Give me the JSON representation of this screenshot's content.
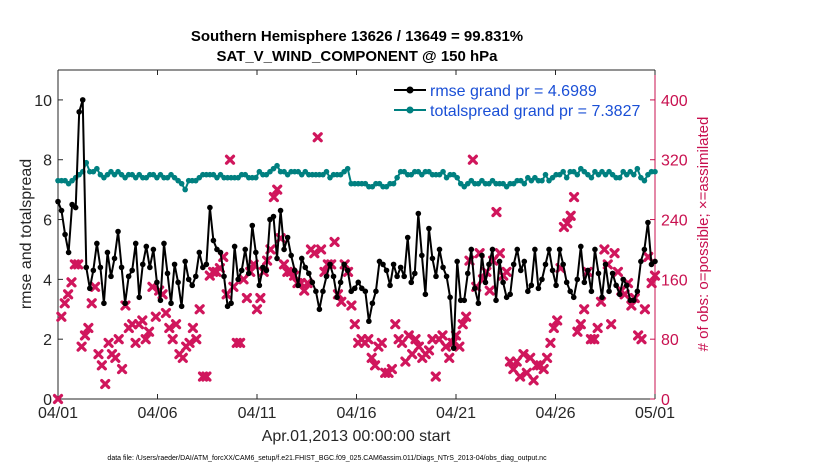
{
  "chart_data": {
    "type": "line",
    "title": "Southern Hemisphere 13626 / 13649 = 99.831%",
    "subtitle": "SAT_V_WIND_COMPONENT @ 150 hPa",
    "xlabel": "Apr.01,2013 00:00:00 start",
    "ylabel": "rmse and totalspread",
    "ylabel_right": "# of obs: o=possible; ×=assimilated",
    "xlim": [
      0,
      30
    ],
    "ylim": [
      0,
      11
    ],
    "ylim_right": [
      0,
      440
    ],
    "x_ticks": [
      0,
      5,
      10,
      15,
      20,
      25,
      30
    ],
    "x_tick_labels": [
      "04/01",
      "04/06",
      "04/11",
      "04/16",
      "04/21",
      "04/26",
      "05/01"
    ],
    "y_ticks": [
      0,
      2,
      4,
      6,
      8,
      10
    ],
    "y_tick_labels": [
      "0",
      "2",
      "4",
      "6",
      "8",
      "10"
    ],
    "y_ticks_right": [
      0,
      80,
      160,
      240,
      320,
      400
    ],
    "y_tick_labels_right": [
      "0",
      "80",
      "160",
      "240",
      "320",
      "400"
    ],
    "legend_position": "top-right",
    "series": [
      {
        "name": "rmse grand pr = 4.6989",
        "color": "#000000",
        "axis": "left",
        "values": [
          6.6,
          6.3,
          5.5,
          4.9,
          6.5,
          6.4,
          9.6,
          10.0,
          4.4,
          3.7,
          4.3,
          5.2,
          4.4,
          3.2,
          4.9,
          4.1,
          4.7,
          5.6,
          4.4,
          3.2,
          4.1,
          4.3,
          5.2,
          3.4,
          4.5,
          5.1,
          4.4,
          5.0,
          3.9,
          3.3,
          5.2,
          4.2,
          3.2,
          4.5,
          3.9,
          3.1,
          4.6,
          4.0,
          3.8,
          4.1,
          4.9,
          4.4,
          4.5,
          6.4,
          5.3,
          5.0,
          4.9,
          4.1,
          3.1,
          3.2,
          5.1,
          4.0,
          4.3,
          5.0,
          4.2,
          5.8,
          4.9,
          3.8,
          4.4,
          4.3,
          6.0,
          6.1,
          4.7,
          6.3,
          5.0,
          5.4,
          4.8,
          4.3,
          3.8,
          4.7,
          4.4,
          4.2,
          3.9,
          3.6,
          3.0,
          3.6,
          4.1,
          4.5,
          4.1,
          3.4,
          3.9,
          4.5,
          4.3,
          3.6,
          3.7,
          3.9,
          3.7,
          3.6,
          2.6,
          3.2,
          3.6,
          4.6,
          4.5,
          4.3,
          3.8,
          4.5,
          4.1,
          4.4,
          4.1,
          5.4,
          3.9,
          4.2,
          6.2,
          4.8,
          3.5,
          5.7,
          4.7,
          4.1,
          5.0,
          4.4,
          4.1,
          3.4,
          1.7,
          4.6,
          3.3,
          3.3,
          4.2,
          5.0,
          3.7,
          3.2,
          4.8,
          3.9,
          4.5,
          5.0,
          3.3,
          4.6,
          3.9,
          3.4,
          3.5,
          4.5,
          5.0,
          4.3,
          4.6,
          3.6,
          3.8,
          5.0,
          3.7,
          4.0,
          4.5,
          5.0,
          4.3,
          3.8,
          5.0,
          4.5,
          3.9,
          3.6,
          3.4,
          4.0,
          5.1,
          3.9,
          4.3,
          3.6,
          5.0,
          4.2,
          3.4,
          4.5,
          3.6,
          4.2,
          3.8,
          3.5,
          4.0,
          3.8,
          3.3,
          3.3,
          3.6,
          4.6,
          5.0,
          5.9,
          4.5,
          4.6
        ]
      },
      {
        "name": "totalspread grand pr = 7.3827",
        "color": "#008080",
        "axis": "left",
        "values": [
          7.3,
          7.3,
          7.3,
          7.2,
          7.3,
          7.4,
          7.5,
          7.6,
          7.9,
          7.6,
          7.6,
          7.7,
          7.5,
          7.4,
          7.5,
          7.6,
          7.5,
          7.6,
          7.5,
          7.4,
          7.5,
          7.5,
          7.4,
          7.5,
          7.4,
          7.4,
          7.5,
          7.5,
          7.4,
          7.5,
          7.4,
          7.4,
          7.5,
          7.4,
          7.3,
          7.2,
          7.0,
          7.3,
          7.3,
          7.3,
          7.4,
          7.5,
          7.5,
          7.5,
          7.5,
          7.4,
          7.5,
          7.4,
          7.4,
          7.4,
          7.4,
          7.4,
          7.5,
          7.5,
          7.4,
          7.4,
          7.4,
          7.6,
          7.5,
          7.5,
          7.6,
          7.7,
          7.8,
          7.6,
          7.6,
          7.5,
          7.6,
          7.6,
          7.6,
          7.5,
          7.6,
          7.5,
          7.5,
          7.5,
          7.5,
          7.5,
          7.6,
          7.4,
          7.5,
          7.5,
          7.5,
          7.6,
          7.7,
          7.2,
          7.2,
          7.2,
          7.2,
          7.2,
          7.1,
          7.1,
          7.2,
          7.2,
          7.1,
          7.1,
          7.2,
          7.2,
          7.4,
          7.6,
          7.6,
          7.5,
          7.5,
          7.6,
          7.6,
          7.5,
          7.6,
          7.6,
          7.5,
          7.5,
          7.5,
          7.6,
          7.4,
          7.5,
          7.5,
          7.4,
          7.2,
          7.1,
          7.2,
          7.3,
          7.2,
          7.2,
          7.3,
          7.2,
          7.2,
          7.3,
          7.2,
          7.2,
          7.2,
          7.1,
          7.2,
          7.2,
          7.3,
          7.3,
          7.2,
          7.4,
          7.3,
          7.4,
          7.3,
          7.3,
          7.5,
          7.3,
          7.4,
          7.5,
          7.5,
          7.6,
          7.4,
          7.6,
          7.6,
          7.5,
          7.7,
          7.6,
          7.5,
          7.4,
          7.6,
          7.5,
          7.6,
          7.5,
          7.6,
          7.5,
          7.4,
          7.4,
          7.6,
          7.5,
          7.6,
          7.5,
          7.7,
          7.4,
          7.3,
          7.5,
          7.6,
          7.6
        ]
      },
      {
        "name": "# of obs assimilated",
        "color": "#d0165c",
        "axis": "right",
        "style": "markers",
        "values": [
          0,
          110,
          128,
          140,
          156,
          180,
          180,
          70,
          85,
          95,
          128,
          150,
          60,
          45,
          20,
          75,
          60,
          55,
          80,
          40,
          125,
          95,
          100,
          75,
          100,
          105,
          80,
          90,
          150,
          110,
          145,
          140,
          115,
          95,
          80,
          100,
          60,
          55,
          70,
          75,
          95,
          80,
          120,
          30,
          30,
          165,
          170,
          170,
          175,
          190,
          140,
          320,
          150,
          75,
          75,
          160,
          135,
          170,
          180,
          120,
          135,
          170,
          185,
          200,
          270,
          280,
          215,
          180,
          170,
          170,
          165,
          155,
          155,
          145,
          155,
          200,
          195,
          350,
          200,
          170,
          180,
          180,
          210,
          140,
          130,
          180,
          170,
          125,
          100,
          75,
          80,
          75,
          80,
          55,
          45,
          70,
          75,
          35,
          35,
          40,
          100,
          80,
          75,
          50,
          85,
          60,
          80,
          70,
          55,
          60,
          65,
          80,
          30,
          80,
          85,
          70,
          55,
          75,
          85,
          70,
          100,
          110,
          185,
          320,
          150,
          195,
          160,
          170,
          145,
          185,
          250,
          195,
          165,
          170,
          50,
          40,
          50,
          30,
          60,
          35,
          55,
          25,
          45,
          45,
          40,
          55,
          75,
          95,
          105,
          175,
          230,
          235,
          245,
          270,
          90,
          100,
          120,
          170,
          80,
          80,
          95,
          130,
          200,
          180,
          100,
          195,
          170,
          145,
          140,
          155,
          125,
          135,
          85,
          80,
          120,
          190,
          155,
          165
        ]
      }
    ],
    "footer": "data file: /Users/raeder/DAI/ATM_forcXX/CAM6_setup/f.e21.FHIST_BGC.f09_025.CAM6assim.011/Diags_NTrS_2013-04/obs_diag_output.nc"
  }
}
